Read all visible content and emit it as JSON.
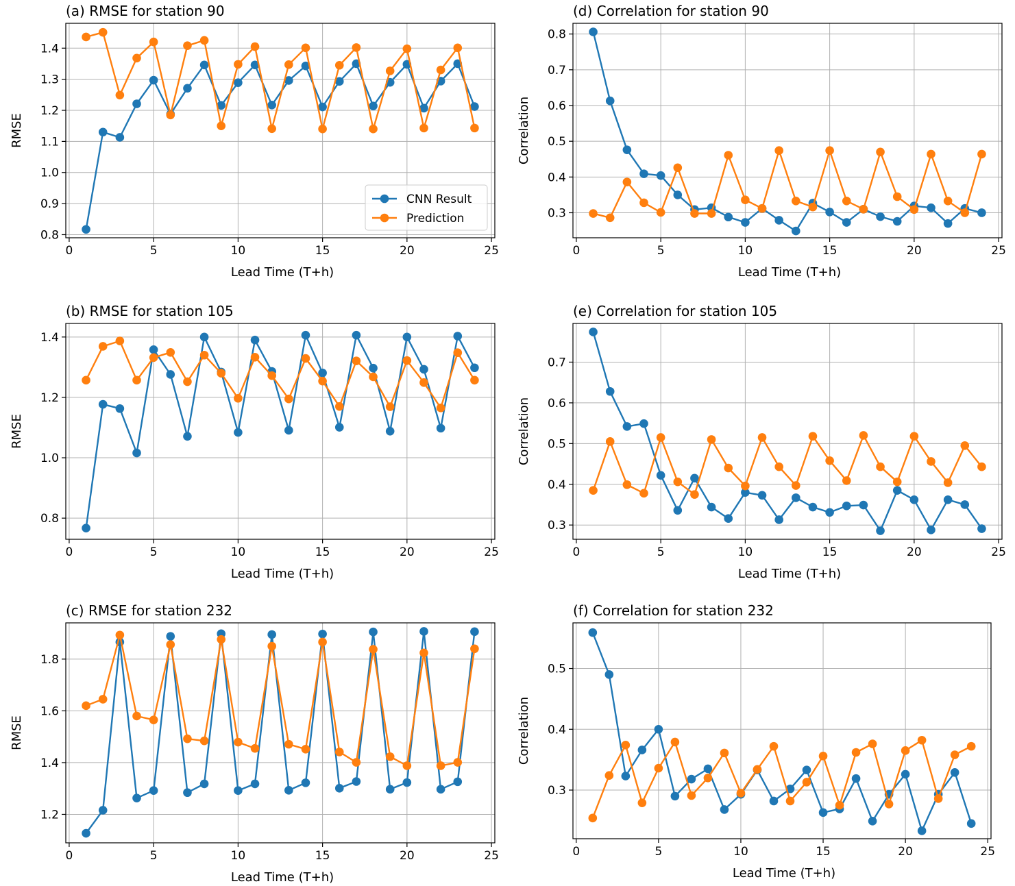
{
  "colors": {
    "cnn": "#1f77b4",
    "prediction": "#ff7f0e",
    "grid": "#b0b0b0",
    "frame": "#000000"
  },
  "chart_data": [
    {
      "type": "line",
      "id": "a",
      "title": "(a) RMSE for station 90",
      "xlabel": "Lead Time (T+h)",
      "ylabel": "RMSE",
      "xlim": [
        -0.2,
        25.2
      ],
      "ylim": [
        0.79,
        1.48
      ],
      "xticks": [
        0,
        5,
        10,
        15,
        20,
        25
      ],
      "yticks": [
        0.8,
        0.9,
        1.0,
        1.1,
        1.2,
        1.3,
        1.4
      ],
      "ytick_labels": [
        "0.8",
        "0.9",
        "1.0",
        "1.1",
        "1.2",
        "1.3",
        "1.4"
      ],
      "grid": true,
      "legend": "lower-right",
      "x": [
        1,
        2,
        3,
        4,
        5,
        6,
        7,
        8,
        9,
        10,
        11,
        12,
        13,
        14,
        15,
        16,
        17,
        18,
        19,
        20,
        21,
        22,
        23,
        24
      ],
      "series": [
        {
          "name": "CNN Result",
          "color": "#1f77b4",
          "values": [
            0.817,
            1.13,
            1.113,
            1.221,
            1.297,
            1.188,
            1.271,
            1.346,
            1.216,
            1.289,
            1.346,
            1.217,
            1.296,
            1.343,
            1.211,
            1.293,
            1.35,
            1.214,
            1.29,
            1.348,
            1.207,
            1.294,
            1.35,
            1.212
          ]
        },
        {
          "name": "Prediction",
          "color": "#ff7f0e",
          "values": [
            1.436,
            1.451,
            1.249,
            1.368,
            1.42,
            1.185,
            1.408,
            1.425,
            1.15,
            1.348,
            1.405,
            1.141,
            1.347,
            1.401,
            1.14,
            1.345,
            1.402,
            1.14,
            1.327,
            1.398,
            1.143,
            1.33,
            1.401,
            1.143
          ]
        }
      ]
    },
    {
      "type": "line",
      "id": "b",
      "title": "(b) RMSE for station 105",
      "xlabel": "Lead Time (T+h)",
      "ylabel": "RMSE",
      "xlim": [
        -0.2,
        25.2
      ],
      "ylim": [
        0.73,
        1.445
      ],
      "xticks": [
        0,
        5,
        10,
        15,
        20,
        25
      ],
      "yticks": [
        0.8,
        1.0,
        1.2,
        1.4
      ],
      "ytick_labels": [
        "0.8",
        "1.0",
        "1.2",
        "1.4"
      ],
      "grid": true,
      "x": [
        1,
        2,
        3,
        4,
        5,
        6,
        7,
        8,
        9,
        10,
        11,
        12,
        13,
        14,
        15,
        16,
        17,
        18,
        19,
        20,
        21,
        22,
        23,
        24
      ],
      "series": [
        {
          "name": "CNN Result",
          "color": "#1f77b4",
          "values": [
            0.767,
            1.177,
            1.163,
            1.016,
            1.358,
            1.276,
            1.071,
            1.4,
            1.284,
            1.084,
            1.39,
            1.286,
            1.091,
            1.406,
            1.281,
            1.101,
            1.406,
            1.297,
            1.088,
            1.4,
            1.293,
            1.098,
            1.403,
            1.298
          ]
        },
        {
          "name": "Prediction",
          "color": "#ff7f0e",
          "values": [
            1.257,
            1.369,
            1.387,
            1.257,
            1.332,
            1.349,
            1.252,
            1.34,
            1.28,
            1.197,
            1.333,
            1.272,
            1.195,
            1.329,
            1.254,
            1.17,
            1.321,
            1.268,
            1.169,
            1.322,
            1.249,
            1.165,
            1.348,
            1.257
          ]
        }
      ]
    },
    {
      "type": "line",
      "id": "c",
      "title": "(c) RMSE for station 232",
      "xlabel": "Lead Time (T+h)",
      "ylabel": "RMSE",
      "xlim": [
        -0.2,
        25.2
      ],
      "ylim": [
        1.09,
        1.94
      ],
      "xticks": [
        0,
        5,
        10,
        15,
        20,
        25
      ],
      "yticks": [
        1.2,
        1.4,
        1.6,
        1.8
      ],
      "ytick_labels": [
        "1.2",
        "1.4",
        "1.6",
        "1.8"
      ],
      "grid": true,
      "x": [
        1,
        2,
        3,
        4,
        5,
        6,
        7,
        8,
        9,
        10,
        11,
        12,
        13,
        14,
        15,
        16,
        17,
        18,
        19,
        20,
        21,
        22,
        23,
        24
      ],
      "series": [
        {
          "name": "CNN Result",
          "color": "#1f77b4",
          "values": [
            1.127,
            1.216,
            1.866,
            1.263,
            1.292,
            1.888,
            1.284,
            1.318,
            1.898,
            1.292,
            1.318,
            1.895,
            1.293,
            1.322,
            1.897,
            1.301,
            1.327,
            1.905,
            1.297,
            1.323,
            1.907,
            1.297,
            1.326,
            1.906
          ]
        },
        {
          "name": "Prediction",
          "color": "#ff7f0e",
          "values": [
            1.62,
            1.645,
            1.893,
            1.58,
            1.565,
            1.856,
            1.492,
            1.484,
            1.876,
            1.479,
            1.455,
            1.85,
            1.471,
            1.452,
            1.866,
            1.441,
            1.401,
            1.838,
            1.423,
            1.388,
            1.824,
            1.388,
            1.401,
            1.84
          ]
        }
      ]
    },
    {
      "type": "line",
      "id": "d",
      "title": "(d) Correlation for station 90",
      "xlabel": "Lead Time (T+h)",
      "ylabel": "Correlation",
      "xlim": [
        -0.2,
        25.2
      ],
      "ylim": [
        0.23,
        0.83
      ],
      "xticks": [
        0,
        5,
        10,
        15,
        20,
        25
      ],
      "yticks": [
        0.3,
        0.4,
        0.5,
        0.6,
        0.7,
        0.8
      ],
      "ytick_labels": [
        "0.3",
        "0.4",
        "0.5",
        "0.6",
        "0.7",
        "0.8"
      ],
      "grid": true,
      "x": [
        1,
        2,
        3,
        4,
        5,
        6,
        7,
        8,
        9,
        10,
        11,
        12,
        13,
        14,
        15,
        16,
        17,
        18,
        19,
        20,
        21,
        22,
        23,
        24
      ],
      "series": [
        {
          "name": "CNN Result",
          "color": "#1f77b4",
          "values": [
            0.806,
            0.613,
            0.476,
            0.409,
            0.404,
            0.35,
            0.309,
            0.314,
            0.288,
            0.273,
            0.312,
            0.279,
            0.249,
            0.327,
            0.302,
            0.273,
            0.31,
            0.289,
            0.276,
            0.319,
            0.314,
            0.27,
            0.312,
            0.3
          ]
        },
        {
          "name": "Prediction",
          "color": "#ff7f0e",
          "values": [
            0.298,
            0.286,
            0.386,
            0.328,
            0.301,
            0.426,
            0.298,
            0.298,
            0.461,
            0.336,
            0.312,
            0.474,
            0.333,
            0.316,
            0.474,
            0.333,
            0.31,
            0.47,
            0.345,
            0.309,
            0.464,
            0.333,
            0.3,
            0.464
          ]
        }
      ]
    },
    {
      "type": "line",
      "id": "e",
      "title": "(e) Correlation for station 105",
      "xlabel": "Lead Time (T+h)",
      "ylabel": "Correlation",
      "xlim": [
        -0.2,
        25.2
      ],
      "ylim": [
        0.265,
        0.795
      ],
      "xticks": [
        0,
        5,
        10,
        15,
        20,
        25
      ],
      "yticks": [
        0.3,
        0.4,
        0.5,
        0.6,
        0.7
      ],
      "ytick_labels": [
        "0.3",
        "0.4",
        "0.5",
        "0.6",
        "0.7"
      ],
      "grid": true,
      "x": [
        1,
        2,
        3,
        4,
        5,
        6,
        7,
        8,
        9,
        10,
        11,
        12,
        13,
        14,
        15,
        16,
        17,
        18,
        19,
        20,
        21,
        22,
        23,
        24
      ],
      "series": [
        {
          "name": "CNN Result",
          "color": "#1f77b4",
          "values": [
            0.774,
            0.628,
            0.542,
            0.549,
            0.422,
            0.336,
            0.415,
            0.344,
            0.316,
            0.38,
            0.373,
            0.313,
            0.367,
            0.344,
            0.331,
            0.347,
            0.349,
            0.286,
            0.385,
            0.362,
            0.288,
            0.362,
            0.35,
            0.291
          ]
        },
        {
          "name": "Prediction",
          "color": "#ff7f0e",
          "values": [
            0.385,
            0.505,
            0.399,
            0.378,
            0.515,
            0.406,
            0.375,
            0.51,
            0.44,
            0.396,
            0.515,
            0.443,
            0.397,
            0.518,
            0.458,
            0.409,
            0.52,
            0.443,
            0.406,
            0.518,
            0.456,
            0.404,
            0.495,
            0.443
          ]
        }
      ]
    },
    {
      "type": "line",
      "id": "f",
      "title": "(f) Correlation for station 232",
      "xlabel": "Lead Time (T+h)",
      "ylabel": "Correlation",
      "xlim": [
        -0.2,
        25.2
      ],
      "ylim": [
        0.22,
        0.575
      ],
      "xticks": [
        0,
        5,
        10,
        15,
        20,
        25
      ],
      "yticks": [
        0.3,
        0.4,
        0.5
      ],
      "ytick_labels": [
        "0.3",
        "0.4",
        "0.5"
      ],
      "grid": true,
      "x": [
        1,
        2,
        3,
        4,
        5,
        6,
        7,
        8,
        9,
        10,
        11,
        12,
        13,
        14,
        15,
        16,
        17,
        18,
        19,
        20,
        21,
        22,
        23,
        24
      ],
      "series": [
        {
          "name": "CNN Result",
          "color": "#1f77b4",
          "values": [
            0.559,
            0.49,
            0.323,
            0.366,
            0.4,
            0.29,
            0.318,
            0.335,
            0.268,
            0.293,
            0.333,
            0.282,
            0.302,
            0.333,
            0.263,
            0.269,
            0.319,
            0.249,
            0.293,
            0.326,
            0.233,
            0.293,
            0.329,
            0.245
          ]
        },
        {
          "name": "Prediction",
          "color": "#ff7f0e",
          "values": [
            0.254,
            0.324,
            0.374,
            0.279,
            0.336,
            0.379,
            0.291,
            0.32,
            0.361,
            0.295,
            0.334,
            0.372,
            0.282,
            0.313,
            0.356,
            0.275,
            0.362,
            0.376,
            0.277,
            0.365,
            0.382,
            0.286,
            0.358,
            0.372
          ]
        }
      ]
    }
  ]
}
